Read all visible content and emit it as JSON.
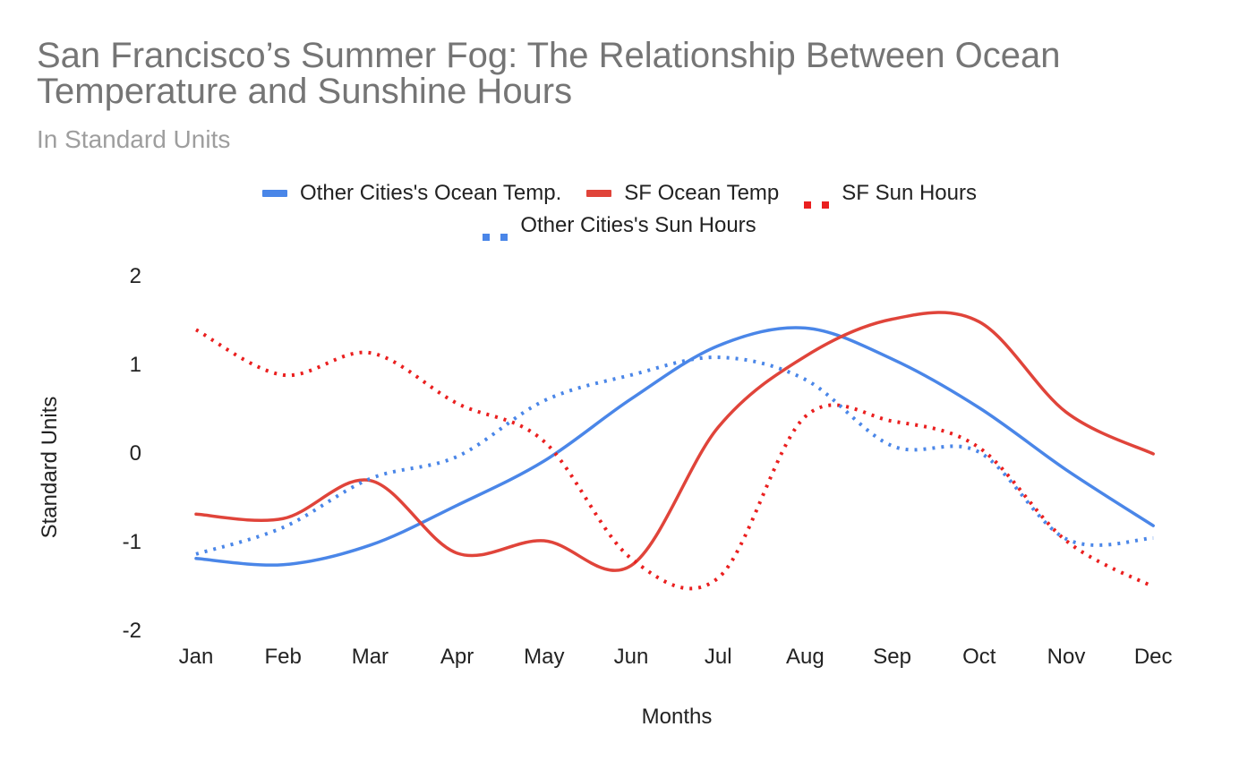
{
  "chart_data": {
    "type": "line",
    "title": "San Francisco’s Summer Fog: The Relationship Between Ocean Temperature and Sunshine Hours",
    "subtitle": "In Standard Units",
    "xlabel": "Months",
    "ylabel": "Standard Units",
    "categories": [
      "Jan",
      "Feb",
      "Mar",
      "Apr",
      "May",
      "Jun",
      "Jul",
      "Aug",
      "Sep",
      "Oct",
      "Nov",
      "Dec"
    ],
    "ylim": [
      -2,
      2
    ],
    "yticks": [
      "2",
      "1",
      "0",
      "-1",
      "-2"
    ],
    "grid": false,
    "legend_position": "top",
    "series": [
      {
        "name": "Other Cities's Ocean Temp.",
        "color": "#4a86e8",
        "style": "solid",
        "values": [
          -1.2,
          -1.27,
          -1.05,
          -0.6,
          -0.1,
          0.6,
          1.2,
          1.4,
          1.05,
          0.5,
          -0.2,
          -0.83
        ]
      },
      {
        "name": "SF Ocean Temp",
        "color": "#e0443a",
        "style": "solid",
        "values": [
          -0.7,
          -0.75,
          -0.32,
          -1.14,
          -1.0,
          -1.28,
          0.28,
          1.08,
          1.5,
          1.47,
          0.45,
          -0.02
        ]
      },
      {
        "name": "SF Sun Hours",
        "color": "#ea1f1f",
        "style": "dotted",
        "values": [
          1.38,
          0.87,
          1.12,
          0.55,
          0.12,
          -1.2,
          -1.42,
          0.4,
          0.35,
          0.05,
          -1.0,
          -1.52
        ]
      },
      {
        "name": "Other Cities's Sun Hours",
        "color": "#4a86e8",
        "style": "dotted",
        "values": [
          -1.15,
          -0.85,
          -0.3,
          -0.05,
          0.58,
          0.87,
          1.07,
          0.82,
          0.07,
          0.0,
          -0.98,
          -0.97
        ]
      }
    ]
  }
}
